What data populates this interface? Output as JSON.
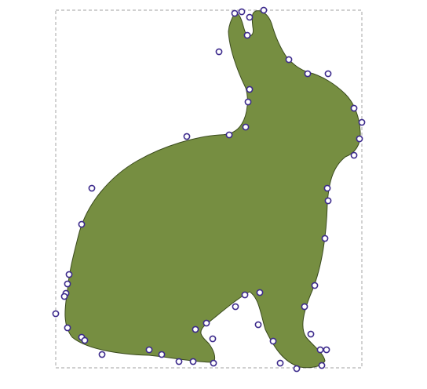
{
  "canvas": {
    "shape_name": "rabbit-silhouette",
    "fill_color": "#768e41",
    "outline_color": "#3a4a1e",
    "selection_box_color": "#b3b3b3",
    "node_stroke_color": "#3c2a8c",
    "node_fill_color": "#ffffff",
    "node_count": 62
  }
}
